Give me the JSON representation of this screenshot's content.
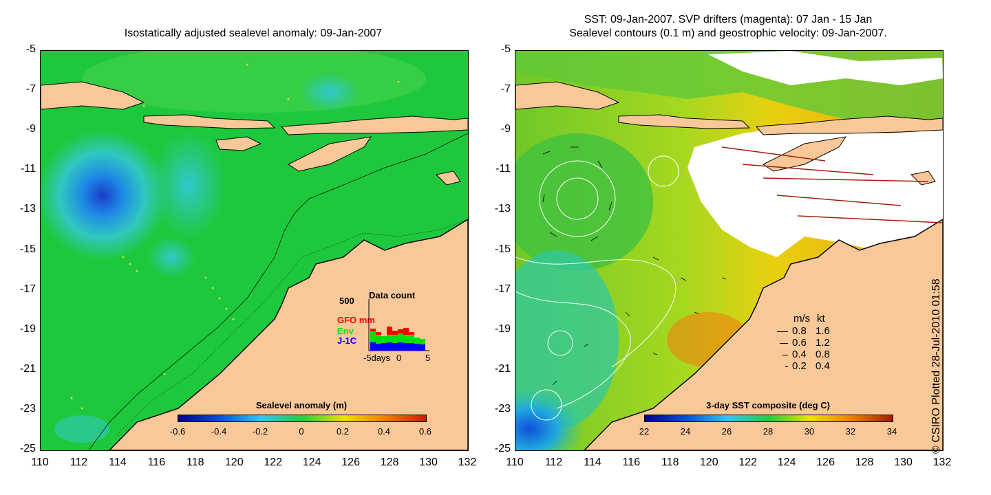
{
  "left_panel": {
    "title": "Isostatically adjusted sealevel anomaly: 09-Jan-2007",
    "colorbar": {
      "title": "Sealevel anomaly (m)",
      "ticks": [
        "-0.6",
        "-0.4",
        "-0.2",
        "0",
        "0.2",
        "0.4",
        "0.6"
      ]
    },
    "inset": {
      "title": "Data count",
      "ymax": "500",
      "series": [
        {
          "name": "GFO mm",
          "color": "#ff0000"
        },
        {
          "name": "Env",
          "color": "#00e000"
        },
        {
          "name": "J-1C",
          "color": "#0000ff"
        }
      ],
      "xlabel_left": "-5days",
      "xlabel_mid": "0",
      "xlabel_right": "5"
    }
  },
  "right_panel": {
    "title_line1": "SST: 09-Jan-2007. SVP drifters (magenta): 07 Jan - 15 Jan",
    "title_line2": "Sealevel contours (0.1 m) and geostrophic velocity: 09-Jan-2007.",
    "colorbar": {
      "title": "3-day SST composite (deg C)",
      "ticks": [
        "22",
        "24",
        "26",
        "28",
        "30",
        "32",
        "34"
      ]
    },
    "velocity_legend": {
      "header_ms": "m/s",
      "header_kt": "kt",
      "rows": [
        {
          "ms": "0.8",
          "kt": "1.6"
        },
        {
          "ms": "0.6",
          "kt": "1.2"
        },
        {
          "ms": "0.4",
          "kt": "0.8"
        },
        {
          "ms": "0.2",
          "kt": "0.4"
        }
      ]
    }
  },
  "axes": {
    "y_ticks": [
      "-5",
      "-7",
      "-9",
      "-11",
      "-13",
      "-15",
      "-17",
      "-19",
      "-21",
      "-23",
      "-25"
    ],
    "x_ticks": [
      "110",
      "112",
      "114",
      "116",
      "118",
      "120",
      "122",
      "124",
      "126",
      "128",
      "130",
      "132"
    ]
  },
  "credit": "© CSIRO Plotted 28-Jul-2010 01:58",
  "colors": {
    "land": "#f8c898",
    "sea_level_green": "#1ec83c",
    "sst_green": "#50c828"
  }
}
